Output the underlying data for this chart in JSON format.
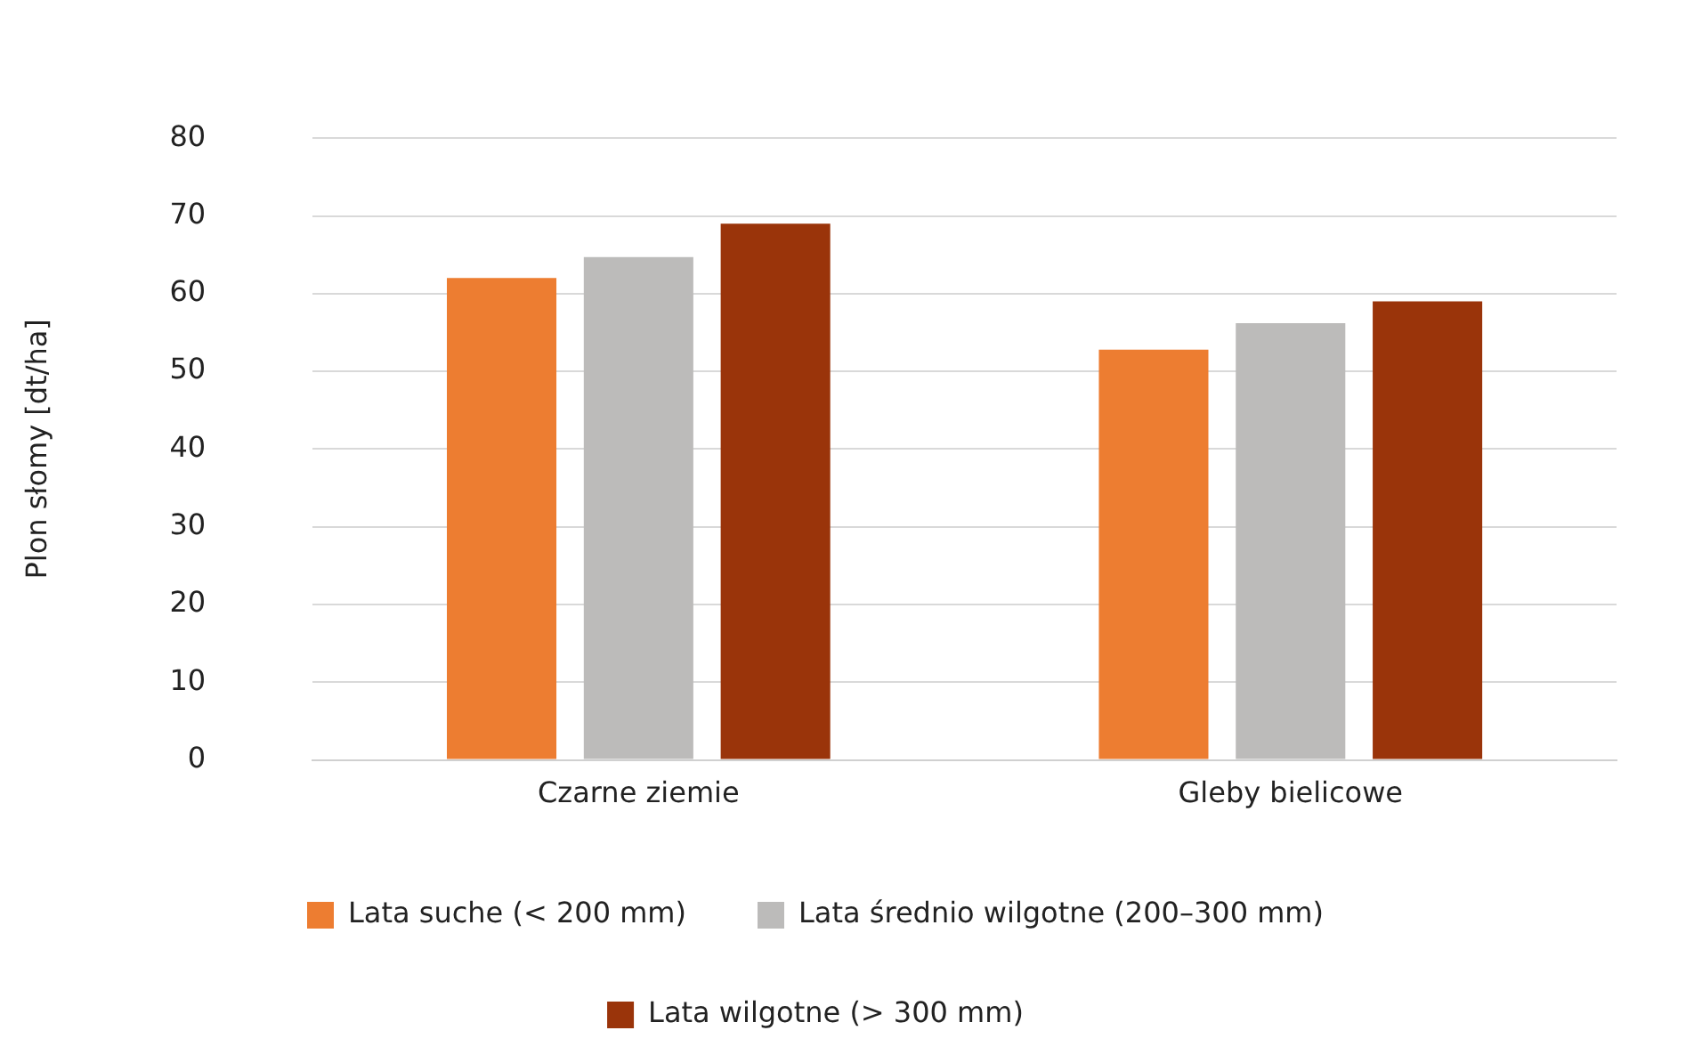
{
  "chart_data": {
    "type": "bar",
    "ylabel": "Plon słomy [dt/ha]",
    "categories": [
      "Czarne ziemie",
      "Gleby bielicowe"
    ],
    "series": [
      {
        "name": "Lata suche (< 200 mm)",
        "color": "#ed7d31",
        "values": [
          62,
          52.8
        ]
      },
      {
        "name": "Lata średnio wilgotne (200–300 mm)",
        "color": "#bcbbba",
        "values": [
          64.7,
          56.2
        ]
      },
      {
        "name": "Lata wilgotne (> 300 mm)",
        "color": "#9a340a",
        "values": [
          69,
          59
        ]
      }
    ],
    "ylim": [
      0,
      80
    ],
    "yticks": [
      0,
      10,
      20,
      30,
      40,
      50,
      60,
      70,
      80
    ],
    "grid": "y",
    "legend": "bottom"
  }
}
